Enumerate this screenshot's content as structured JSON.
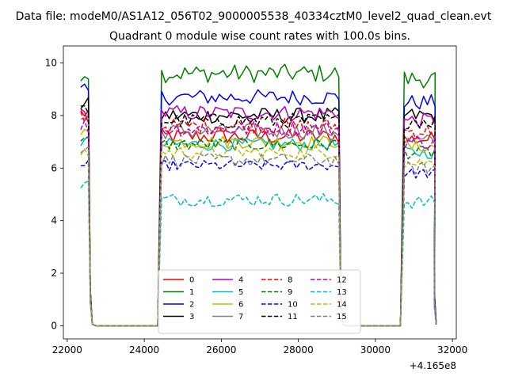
{
  "chart_data": {
    "type": "line",
    "suptitle": "Data file: modeM0/AS1A12_056T02_9000005538_40334cztM0_level2_quad_clean.evt",
    "title": "Quadrant 0 module wise count rates with 100.0s bins.",
    "xlabel": "",
    "ylabel": "",
    "x_offset_label": "+4.165e8",
    "xlim": [
      21900,
      32100
    ],
    "ylim": [
      -0.5,
      10.65
    ],
    "xticks": [
      22000,
      24000,
      26000,
      28000,
      30000,
      32000
    ],
    "xtick_labels": [
      "22000",
      "24000",
      "26000",
      "28000",
      "30000",
      "32000"
    ],
    "yticks": [
      0,
      2,
      4,
      6,
      8,
      10
    ],
    "ytick_labels": [
      "0",
      "2",
      "4",
      "6",
      "8",
      "10"
    ],
    "grid": false,
    "legend_position": "lower-center",
    "legend_columns": 4,
    "segments": [
      {
        "x_start": 22350,
        "x_end": 22550,
        "x_drop": 22650,
        "x_zero_end": 24350
      },
      {
        "x_start": 24450,
        "x_end": 29050,
        "x_drop": 29150,
        "x_zero_end": 30650
      },
      {
        "x_start": 30750,
        "x_end": 31550,
        "x_drop": 31580,
        "x_zero_end": null
      }
    ],
    "series": [
      {
        "name": "0",
        "color": "#ff0000",
        "dash": "solid",
        "level_first": 8.1,
        "level": 7.2,
        "level_last": 7.1,
        "noise": 0.3
      },
      {
        "name": "1",
        "color": "#008000",
        "dash": "solid",
        "level_first": 9.65,
        "level": 9.6,
        "level_last": 9.4,
        "noise": 0.35
      },
      {
        "name": "2",
        "color": "#0000ff",
        "dash": "solid",
        "level_first": 8.9,
        "level": 8.7,
        "level_last": 8.5,
        "noise": 0.3
      },
      {
        "name": "3",
        "color": "#000000",
        "dash": "solid",
        "level_first": 8.4,
        "level": 8.0,
        "level_last": 8.0,
        "noise": 0.3
      },
      {
        "name": "4",
        "color": "#bf00bf",
        "dash": "solid",
        "level_first": 8.0,
        "level": 8.1,
        "level_last": 7.8,
        "noise": 0.3
      },
      {
        "name": "5",
        "color": "#00bfbf",
        "dash": "solid",
        "level_first": 7.0,
        "level": 6.9,
        "level_last": 6.6,
        "noise": 0.25
      },
      {
        "name": "6",
        "color": "#bfbf00",
        "dash": "solid",
        "level_first": 7.3,
        "level": 7.0,
        "level_last": 6.8,
        "noise": 0.25
      },
      {
        "name": "7",
        "color": "#808080",
        "dash": "solid",
        "level_first": 7.9,
        "level": 7.4,
        "level_last": 7.0,
        "noise": 0.3
      },
      {
        "name": "8",
        "color": "#ff0000",
        "dash": "dashed",
        "level_first": 8.0,
        "level": 7.6,
        "level_last": 7.4,
        "noise": 0.3
      },
      {
        "name": "9",
        "color": "#008000",
        "dash": "dashed",
        "level_first": 7.0,
        "level": 6.9,
        "level_last": 6.6,
        "noise": 0.25
      },
      {
        "name": "10",
        "color": "#0000ff",
        "dash": "dashed",
        "level_first": 6.1,
        "level": 6.1,
        "level_last": 5.8,
        "noise": 0.2
      },
      {
        "name": "11",
        "color": "#000000",
        "dash": "dashed",
        "level_first": 8.2,
        "level": 7.8,
        "level_last": 7.8,
        "noise": 0.3
      },
      {
        "name": "12",
        "color": "#bf00bf",
        "dash": "dashed",
        "level_first": 7.6,
        "level": 7.5,
        "level_last": 7.0,
        "noise": 0.3
      },
      {
        "name": "13",
        "color": "#00bfbf",
        "dash": "dashed",
        "level_first": 5.4,
        "level": 4.8,
        "level_last": 4.7,
        "noise": 0.25
      },
      {
        "name": "14",
        "color": "#bfbf00",
        "dash": "dashed",
        "level_first": 6.6,
        "level": 6.6,
        "level_last": 6.2,
        "noise": 0.25
      },
      {
        "name": "15",
        "color": "#808080",
        "dash": "dashed",
        "level_first": 6.8,
        "level": 6.3,
        "level_last": 6.0,
        "noise": 0.25
      }
    ]
  }
}
